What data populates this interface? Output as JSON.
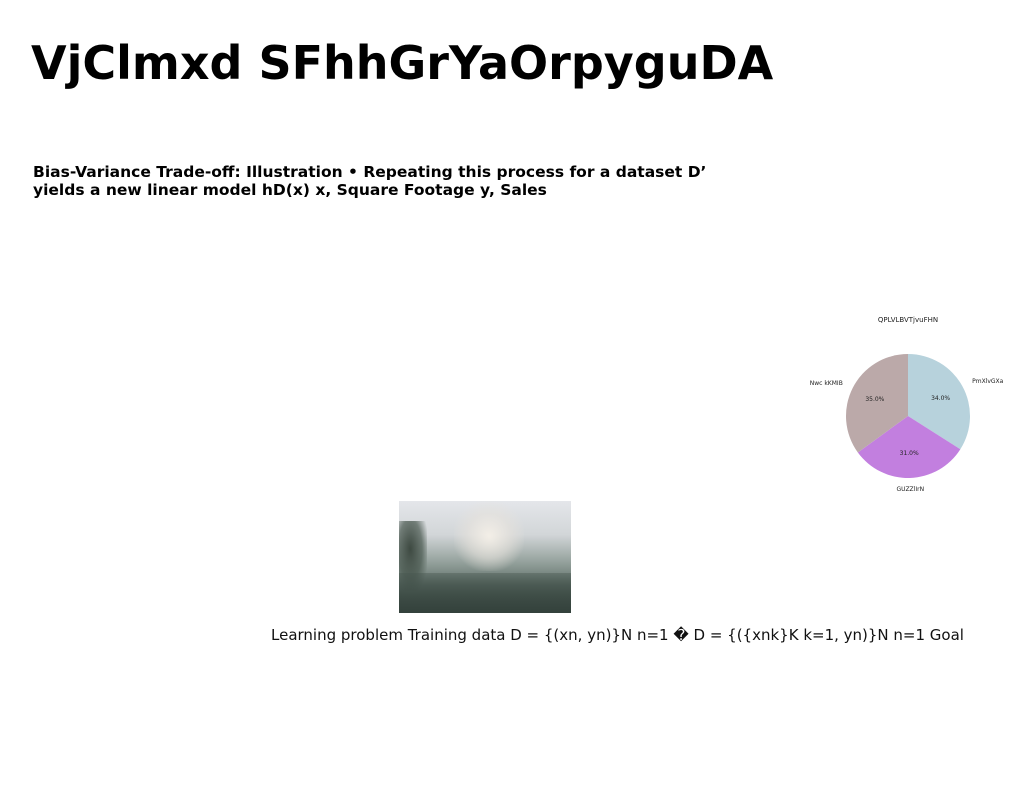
{
  "slide": {
    "title": "VjClmxd SFhhGrYaOrpyguDA",
    "subtitle": "Bias-Variance Trade-off: Illustration • Repeating this process for a dataset D’ yields a new linear model hD(x) x, Square Footage y, Sales",
    "caption": "Learning problem Training data D = {(xn, yn)}N n=1 � D = {({xnk}K k=1, yn)}N n=1 Goal"
  },
  "chart_data": {
    "type": "pie",
    "title": "QPLVLBVTjvuFHN",
    "labels": [
      "PmXlvGXa",
      "GUZZlIrN",
      "Nwc  kKMIB"
    ],
    "values": [
      34.0,
      31.0,
      35.0
    ],
    "value_labels": [
      "34.0%",
      "31.0%",
      "35.0%"
    ],
    "colors": [
      "#b7d2dc",
      "#c27fdf",
      "#bba9a9"
    ],
    "start_angle_deg": 90,
    "direction": "clockwise"
  }
}
